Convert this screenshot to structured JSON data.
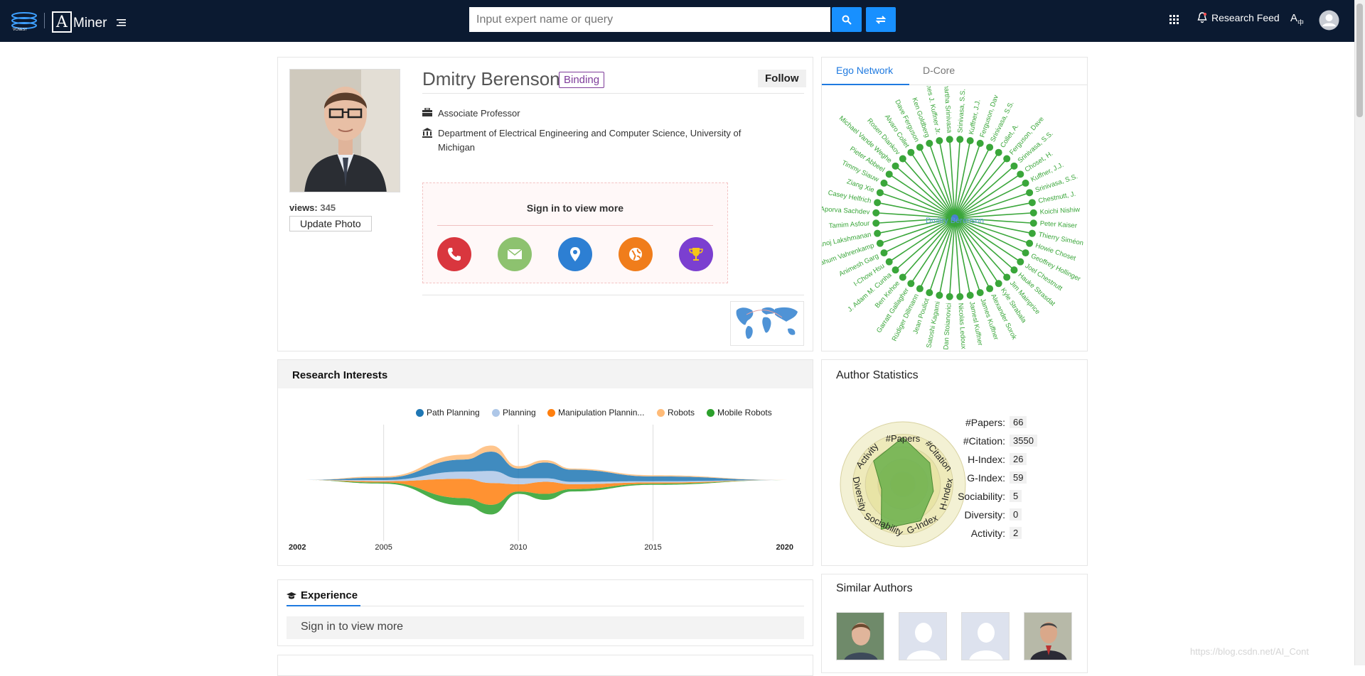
{
  "header": {
    "logo_alt": "AMiner",
    "logo_text": "Miner",
    "search_placeholder": "Input expert name or query",
    "research_feed": "Research Feed"
  },
  "profile": {
    "name": "Dmitry Berenson",
    "binding": "Binding",
    "follow": "Follow",
    "views_label": "views:",
    "views_value": "345",
    "update_photo": "Update Photo",
    "position": "Associate Professor",
    "department": "Department of Electrical Engineering and Computer Science, University of",
    "department_line2": "Michigan",
    "sign_in": "Sign in to view more",
    "contact_icons": [
      "phone-icon",
      "email-icon",
      "location-icon",
      "globe-icon",
      "trophy-icon"
    ],
    "contact_colors": [
      "#d9363e",
      "#8dc26f",
      "#2d7fd3",
      "#f07d1b",
      "#7b3fd0"
    ]
  },
  "network": {
    "tabs": [
      "Ego Network",
      "D-Core"
    ],
    "center": "Dmitry Berenson",
    "nodes": [
      "Srinivasa, S.S.",
      "Kuffner, J.J.",
      "Ferguson, Dav",
      "Srinivasa, S.S.",
      "Collet, A.",
      "Ferguson, Dave",
      "Srinivasa, S.S.",
      "Choset, H.",
      "Kuffner, J.J.",
      "Srinivasa, S.S.",
      "Chestnutt, J.",
      "Koichi Nishiw",
      "Peter Kaiser",
      "Thierry Siméon",
      "Howie Choset",
      "Geoffrey Hollinger",
      "Joel Chestnutt",
      "Hauke Strasdat",
      "Jim Mainprice",
      "Kyle Strabala",
      "Alexander Sorok",
      "James Kuffner",
      "Jamesl Kuffner",
      "Nicolas Ledoux",
      "Dan Stoianovici",
      "Satoshi Kagami",
      "Jean Pouliot",
      "Rüdiger Dillmann",
      "Garratt Gallagher",
      "Ben Kehoe",
      "J. Adam M. Cunha",
      "I-Chow Hsu",
      "Animesh Garg",
      "Nahum Vahrenkamp",
      "Manoj Lakshmanan",
      "Tamim Asfour",
      "Aporva Sachdev",
      "Casey Helfrich",
      "Ziang Xie",
      "Timmy Siauw",
      "Pieter Abbeel",
      "Michael Vande Weghe",
      "Rosen Diankov",
      "Alvaro Collet",
      "Dave Ferguson",
      "Ken Goldberg",
      "James J. Kuffner Jr.",
      "Siddhartha Srinivasa"
    ]
  },
  "interests": {
    "title": "Research Interests",
    "legend": [
      {
        "label": "Path Planning",
        "color": "#1f77b4"
      },
      {
        "label": "Planning",
        "color": "#aec7e8"
      },
      {
        "label": "Manipulation Plannin...",
        "color": "#ff7f0e"
      },
      {
        "label": "Robots",
        "color": "#ffbb78"
      },
      {
        "label": "Mobile Robots",
        "color": "#2ca02c"
      }
    ],
    "years": [
      "2002",
      "2005",
      "2010",
      "2015",
      "2020"
    ]
  },
  "chart_data": {
    "type": "area",
    "title": "Research Interests",
    "x": [
      2002,
      2005,
      2008,
      2009,
      2010,
      2011,
      2012,
      2015,
      2020
    ],
    "series": [
      {
        "name": "Path Planning",
        "values": [
          0,
          2,
          10,
          16,
          8,
          13,
          10,
          4,
          0
        ]
      },
      {
        "name": "Planning",
        "values": [
          0,
          1,
          6,
          10,
          5,
          3,
          2,
          1,
          0
        ]
      },
      {
        "name": "Manipulation Plannin...",
        "values": [
          0,
          1,
          16,
          18,
          6,
          10,
          4,
          1,
          0
        ]
      },
      {
        "name": "Robots",
        "values": [
          0,
          1,
          4,
          5,
          2,
          2,
          1,
          1,
          0
        ]
      },
      {
        "name": "Mobile Robots",
        "values": [
          0,
          1,
          6,
          8,
          2,
          5,
          2,
          1,
          0
        ]
      }
    ]
  },
  "stats": {
    "title": "Author Statistics",
    "items": [
      {
        "label": "#Papers:",
        "value": "66"
      },
      {
        "label": "#Citation:",
        "value": "3550"
      },
      {
        "label": "H-Index:",
        "value": "26"
      },
      {
        "label": "G-Index:",
        "value": "59"
      },
      {
        "label": "Sociability:",
        "value": "5"
      },
      {
        "label": "Diversity:",
        "value": "0"
      },
      {
        "label": "Activity:",
        "value": "2"
      }
    ],
    "radar_labels": [
      "#Papers",
      "#Citation",
      "H-Index",
      "G-Index",
      "Sociability",
      "Diversity",
      "Activity"
    ]
  },
  "experience": {
    "title": "Experience",
    "sign_in": "Sign in to view more"
  },
  "similar": {
    "title": "Similar Authors"
  },
  "watermark": "https://blog.csdn.net/AI_Cont"
}
